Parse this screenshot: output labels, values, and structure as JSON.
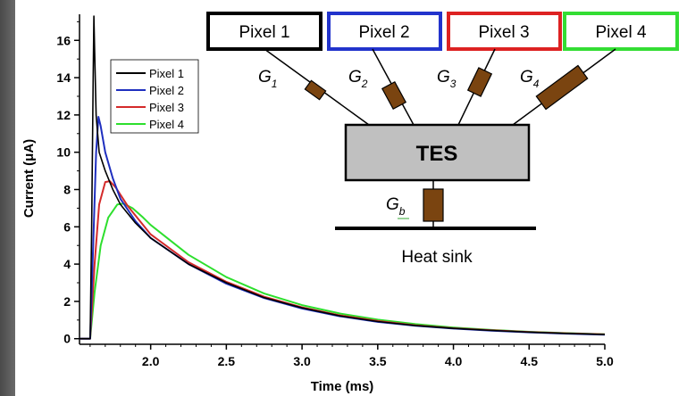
{
  "chart_data": {
    "type": "line",
    "xlabel": "Time (ms)",
    "ylabel": "Current (μA)",
    "xlim": [
      1.53,
      5.0
    ],
    "ylim": [
      -0.3,
      17.4
    ],
    "x_ticks": [
      "2.0",
      "2.5",
      "3.0",
      "3.5",
      "4.0",
      "4.5",
      "5.0"
    ],
    "y_ticks": [
      "0",
      "2",
      "4",
      "6",
      "8",
      "10",
      "12",
      "14",
      "16"
    ],
    "legend_position": "top-left",
    "series": [
      {
        "name": "Pixel 1",
        "color": "#000000",
        "points": [
          [
            1.53,
            0
          ],
          [
            1.6,
            0
          ],
          [
            1.61,
            6
          ],
          [
            1.62,
            14
          ],
          [
            1.625,
            17.3
          ],
          [
            1.63,
            15.5
          ],
          [
            1.64,
            12
          ],
          [
            1.66,
            10
          ],
          [
            1.7,
            9
          ],
          [
            1.75,
            8
          ],
          [
            1.8,
            7.2
          ],
          [
            1.9,
            6.2
          ],
          [
            2.0,
            5.4
          ],
          [
            2.25,
            4.0
          ],
          [
            2.5,
            3.0
          ],
          [
            2.75,
            2.2
          ],
          [
            3.0,
            1.65
          ],
          [
            3.25,
            1.22
          ],
          [
            3.5,
            0.92
          ],
          [
            3.75,
            0.7
          ],
          [
            4.0,
            0.55
          ],
          [
            4.25,
            0.44
          ],
          [
            4.5,
            0.35
          ],
          [
            4.75,
            0.28
          ],
          [
            5.0,
            0.22
          ]
        ]
      },
      {
        "name": "Pixel 2",
        "color": "#1f2fbf",
        "points": [
          [
            1.53,
            0
          ],
          [
            1.6,
            0
          ],
          [
            1.62,
            5
          ],
          [
            1.64,
            10
          ],
          [
            1.655,
            11.9
          ],
          [
            1.67,
            11.4
          ],
          [
            1.7,
            10
          ],
          [
            1.75,
            8.6
          ],
          [
            1.8,
            7.5
          ],
          [
            1.9,
            6.3
          ],
          [
            2.0,
            5.4
          ],
          [
            2.25,
            4.0
          ],
          [
            2.5,
            2.95
          ],
          [
            2.75,
            2.18
          ],
          [
            3.0,
            1.62
          ],
          [
            3.25,
            1.2
          ],
          [
            3.5,
            0.9
          ],
          [
            3.75,
            0.69
          ],
          [
            4.0,
            0.54
          ],
          [
            4.25,
            0.43
          ],
          [
            4.5,
            0.34
          ],
          [
            4.75,
            0.27
          ],
          [
            5.0,
            0.21
          ]
        ]
      },
      {
        "name": "Pixel 3",
        "color": "#d42a2a",
        "points": [
          [
            1.53,
            0
          ],
          [
            1.6,
            0
          ],
          [
            1.63,
            4
          ],
          [
            1.66,
            7.2
          ],
          [
            1.7,
            8.4
          ],
          [
            1.73,
            8.45
          ],
          [
            1.77,
            8.1
          ],
          [
            1.85,
            7.1
          ],
          [
            1.9,
            6.6
          ],
          [
            2.0,
            5.6
          ],
          [
            2.25,
            4.1
          ],
          [
            2.5,
            3.05
          ],
          [
            2.75,
            2.25
          ],
          [
            3.0,
            1.68
          ],
          [
            3.25,
            1.25
          ],
          [
            3.5,
            0.95
          ],
          [
            3.75,
            0.72
          ],
          [
            4.0,
            0.56
          ],
          [
            4.25,
            0.45
          ],
          [
            4.5,
            0.36
          ],
          [
            4.75,
            0.29
          ],
          [
            5.0,
            0.23
          ]
        ]
      },
      {
        "name": "Pixel 4",
        "color": "#2ddf2d",
        "points": [
          [
            1.53,
            0
          ],
          [
            1.6,
            0
          ],
          [
            1.63,
            2.5
          ],
          [
            1.67,
            5
          ],
          [
            1.72,
            6.5
          ],
          [
            1.78,
            7.2
          ],
          [
            1.82,
            7.25
          ],
          [
            1.88,
            7.0
          ],
          [
            1.95,
            6.5
          ],
          [
            2.0,
            6.1
          ],
          [
            2.25,
            4.5
          ],
          [
            2.5,
            3.3
          ],
          [
            2.75,
            2.42
          ],
          [
            3.0,
            1.8
          ],
          [
            3.25,
            1.35
          ],
          [
            3.5,
            1.02
          ],
          [
            3.75,
            0.78
          ],
          [
            4.0,
            0.6
          ],
          [
            4.25,
            0.47
          ],
          [
            4.5,
            0.37
          ],
          [
            4.75,
            0.3
          ],
          [
            5.0,
            0.24
          ]
        ]
      }
    ]
  },
  "diagram": {
    "pixels": [
      {
        "label": "Pixel 1",
        "color": "#000000"
      },
      {
        "label": "Pixel 2",
        "color": "#2233cc"
      },
      {
        "label": "Pixel 3",
        "color": "#dd2222"
      },
      {
        "label": "Pixel 4",
        "color": "#33dd33"
      }
    ],
    "conductances": [
      {
        "base": "G",
        "sub": "1"
      },
      {
        "base": "G",
        "sub": "2"
      },
      {
        "base": "G",
        "sub": "3"
      },
      {
        "base": "G",
        "sub": "4"
      }
    ],
    "tes_label": "TES",
    "bath_conductance": {
      "base": "G",
      "sub": "b"
    },
    "heat_sink_label": "Heat sink",
    "colors": {
      "tes_fill": "#c0c0c0",
      "resistor_fill": "#7a4410"
    }
  }
}
